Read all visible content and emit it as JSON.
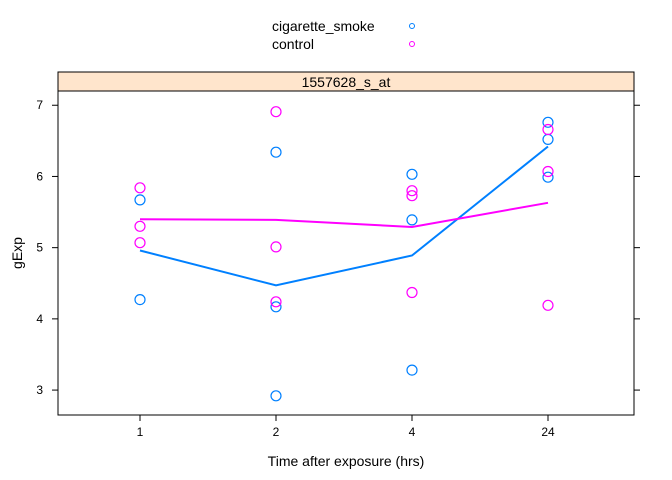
{
  "chart_data": {
    "type": "scatter",
    "title": "",
    "panel_label": "1557628_s_at",
    "xlabel": "Time after exposure (hrs)",
    "ylabel": "gExp",
    "categories": [
      "1",
      "2",
      "4",
      "24"
    ],
    "yticks": [
      "3",
      "4",
      "5",
      "6",
      "7"
    ],
    "ylim": [
      2.65,
      7.2
    ],
    "legend_position": "top-center",
    "series": [
      {
        "name": "cigarette_smoke",
        "color": "#0080ff",
        "points": [
          {
            "x": "1",
            "y": 5.67
          },
          {
            "x": "1",
            "y": 4.27
          },
          {
            "x": "2",
            "y": 6.34
          },
          {
            "x": "2",
            "y": 4.17
          },
          {
            "x": "2",
            "y": 2.92
          },
          {
            "x": "4",
            "y": 6.03
          },
          {
            "x": "4",
            "y": 5.39
          },
          {
            "x": "4",
            "y": 3.28
          },
          {
            "x": "24",
            "y": 6.76
          },
          {
            "x": "24",
            "y": 6.52
          },
          {
            "x": "24",
            "y": 5.99
          }
        ],
        "mean_line": [
          4.96,
          4.47,
          4.89,
          6.42
        ]
      },
      {
        "name": "control",
        "color": "#ff00ff",
        "points": [
          {
            "x": "1",
            "y": 5.84
          },
          {
            "x": "1",
            "y": 5.3
          },
          {
            "x": "1",
            "y": 5.07
          },
          {
            "x": "2",
            "y": 6.91
          },
          {
            "x": "2",
            "y": 5.01
          },
          {
            "x": "2",
            "y": 4.24
          },
          {
            "x": "4",
            "y": 5.8
          },
          {
            "x": "4",
            "y": 5.73
          },
          {
            "x": "4",
            "y": 4.37
          },
          {
            "x": "24",
            "y": 6.66
          },
          {
            "x": "24",
            "y": 6.07
          },
          {
            "x": "24",
            "y": 4.19
          }
        ],
        "mean_line": [
          5.4,
          5.39,
          5.29,
          5.63
        ]
      }
    ]
  }
}
